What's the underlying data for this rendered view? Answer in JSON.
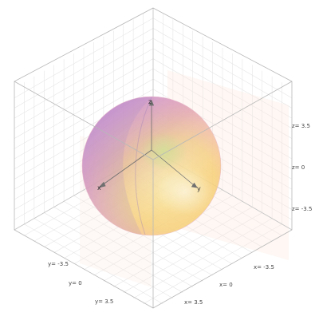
{
  "axes": {
    "x": {
      "letter": "x",
      "ticks": [
        "x= -3.5",
        "x= 0",
        "x= 3.5"
      ]
    },
    "y": {
      "letter": "y",
      "ticks": [
        "y= -3.5",
        "y= 0",
        "y= 3.5"
      ]
    },
    "z": {
      "letter": "z",
      "ticks": [
        "z= 3.5",
        "z= 0",
        "z= -3.5"
      ]
    }
  },
  "colors": {
    "box_edge": "#bdbdbd",
    "grid_line": "#e6e6e6",
    "sphere_top": "#b58bd6",
    "sphere_center": "#f6d07a",
    "sphere_bottom": "#f4a7b6",
    "sphere_green_tint": "#c9df8f",
    "axis_arrow": "#666666"
  },
  "sphere": {
    "shape": "sphere",
    "opacity": 0.85
  }
}
